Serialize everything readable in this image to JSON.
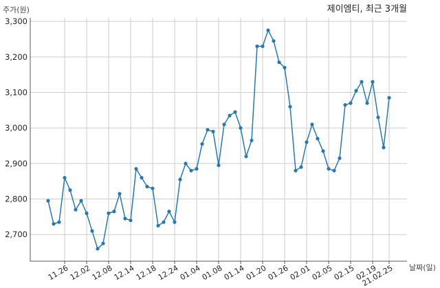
{
  "chart_data": {
    "type": "line",
    "title": "제이엠티, 최근 3개월",
    "ylabel": "주가(원)",
    "xlabel": "날짜(일)",
    "ylim": [
      2625,
      3310
    ],
    "yticks": [
      2700,
      2800,
      2900,
      3000,
      3100,
      3200,
      3300
    ],
    "ytick_labels": [
      "2,700",
      "2,800",
      "2,900",
      "3,000",
      "3,100",
      "3,200",
      "3,300"
    ],
    "xticks": [
      "11.26",
      "12.02",
      "12.08",
      "12.14",
      "12.18",
      "12.24",
      "01.04",
      "01.08",
      "01.14",
      "01.20",
      "01.26",
      "02.01",
      "02.05",
      "02.15",
      "02.19",
      "21.02.25"
    ],
    "xtick_index": [
      3,
      7,
      11,
      15,
      19,
      23,
      27,
      31,
      35,
      39,
      43,
      47,
      51,
      55,
      59,
      62
    ],
    "grid": true,
    "colors": {
      "line": "#2878b0",
      "grid": "#cccccc",
      "axis": "#555555"
    },
    "series": [
      {
        "values": [
          2795,
          2730,
          2735,
          2860,
          2825,
          2770,
          2795,
          2760,
          2710,
          2660,
          2675,
          2760,
          2765,
          2815,
          2745,
          2740,
          2885,
          2860,
          2835,
          2830,
          2725,
          2735,
          2765,
          2735,
          2855,
          2900,
          2880,
          2885,
          2955,
          2995,
          2990,
          2895,
          3010,
          3035,
          3045,
          3000,
          2920,
          2965,
          3230,
          3230,
          3275,
          3245,
          3185,
          3170,
          3060,
          2880,
          2890,
          2960,
          3010,
          2970,
          2935,
          2885,
          2880,
          2915,
          3065,
          3070,
          3105,
          3130,
          3070,
          3130,
          3030,
          2945,
          3085
        ]
      }
    ]
  }
}
